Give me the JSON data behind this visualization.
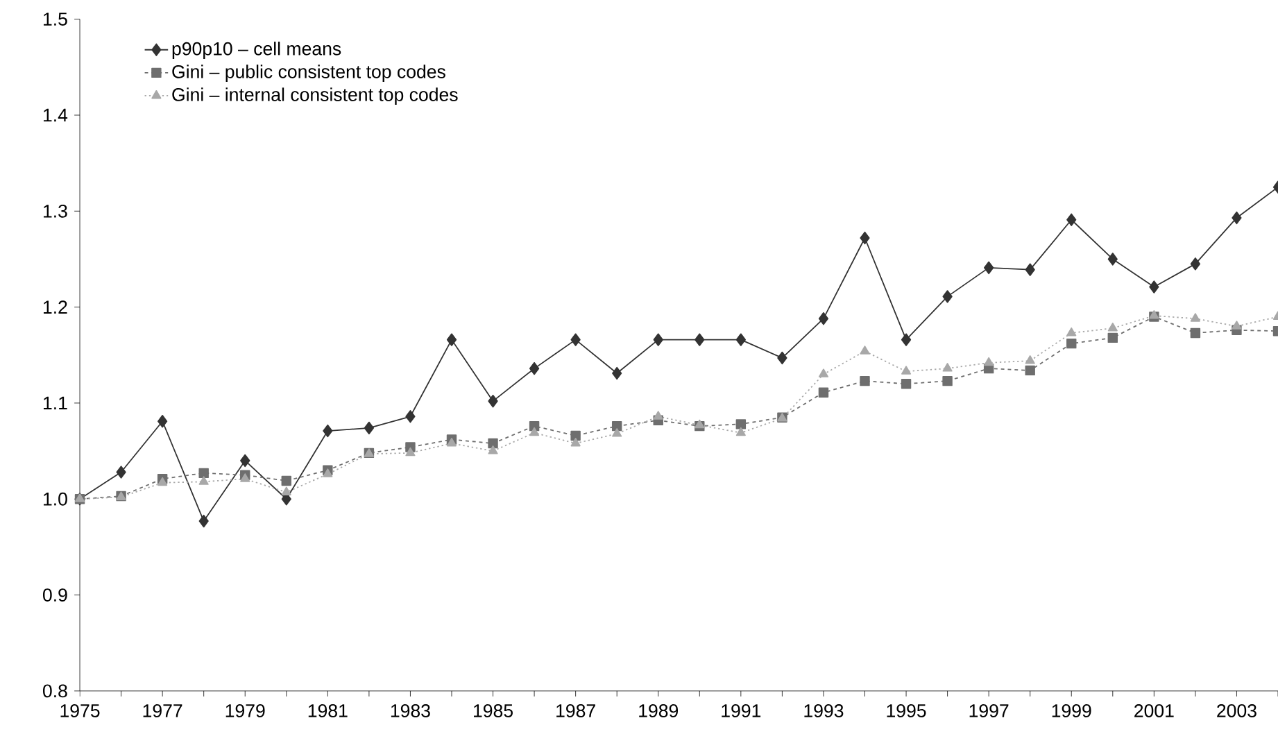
{
  "chart_data": {
    "type": "line",
    "x": [
      1975,
      1976,
      1977,
      1978,
      1979,
      1980,
      1981,
      1982,
      1983,
      1984,
      1985,
      1986,
      1987,
      1988,
      1989,
      1990,
      1991,
      1992,
      1993,
      1994,
      1995,
      1996,
      1997,
      1998,
      1999,
      2000,
      2001,
      2002,
      2003,
      2004
    ],
    "series": [
      {
        "name": "p90p10 – cell means",
        "color": "#333333",
        "marker": "diamond",
        "line_style": "solid",
        "values": [
          1.0,
          1.028,
          1.081,
          0.977,
          1.04,
          1.0,
          1.071,
          1.074,
          1.086,
          1.166,
          1.102,
          1.136,
          1.166,
          1.131,
          1.166,
          1.166,
          1.166,
          1.147,
          1.188,
          1.272,
          1.166,
          1.211,
          1.241,
          1.239,
          1.291,
          1.25,
          1.221,
          1.245,
          1.293,
          1.325
        ]
      },
      {
        "name": "Gini – public consistent top codes",
        "color": "#6e6e6e",
        "marker": "square",
        "line_style": "dashed",
        "values": [
          1.0,
          1.003,
          1.021,
          1.027,
          1.025,
          1.019,
          1.03,
          1.048,
          1.054,
          1.062,
          1.058,
          1.076,
          1.066,
          1.076,
          1.082,
          1.076,
          1.078,
          1.085,
          1.111,
          1.123,
          1.12,
          1.123,
          1.136,
          1.134,
          1.162,
          1.168,
          1.19,
          1.173,
          1.176,
          1.175
        ]
      },
      {
        "name": "Gini – internal consistent top codes",
        "color": "#a8a8a8",
        "marker": "triangle",
        "line_style": "dotted",
        "values": [
          1.0,
          1.002,
          1.017,
          1.018,
          1.021,
          1.007,
          1.026,
          1.047,
          1.048,
          1.058,
          1.05,
          1.069,
          1.058,
          1.068,
          1.086,
          1.077,
          1.069,
          1.084,
          1.13,
          1.154,
          1.133,
          1.136,
          1.142,
          1.144,
          1.173,
          1.178,
          1.191,
          1.188,
          1.18,
          1.19
        ]
      }
    ],
    "xlim": [
      1975,
      2004
    ],
    "xticks": [
      1975,
      {
        "value": 1976,
        "label": null
      },
      1977,
      {
        "value": 1978,
        "label": null
      },
      1979,
      {
        "value": 1980,
        "label": null
      },
      1981,
      {
        "value": 1982,
        "label": null
      },
      1983,
      {
        "value": 1984,
        "label": null
      },
      1985,
      {
        "value": 1986,
        "label": null
      },
      1987,
      {
        "value": 1988,
        "label": null
      },
      1989,
      {
        "value": 1990,
        "label": null
      },
      1991,
      {
        "value": 1992,
        "label": null
      },
      1993,
      {
        "value": 1994,
        "label": null
      },
      1995,
      {
        "value": 1996,
        "label": null
      },
      1997,
      {
        "value": 1998,
        "label": null
      },
      1999,
      {
        "value": 2000,
        "label": null
      },
      2001,
      {
        "value": 2002,
        "label": null
      },
      2003,
      {
        "value": 2004,
        "label": null
      }
    ],
    "ylim": [
      0.8,
      1.5
    ],
    "yticks": [
      {
        "value": 0.8,
        "label": "0.8"
      },
      {
        "value": 0.9,
        "label": "0.9"
      },
      {
        "value": 1.0,
        "label": "1.0"
      },
      {
        "value": 1.1,
        "label": "1.1"
      },
      {
        "value": 1.2,
        "label": "1.2"
      },
      {
        "value": 1.3,
        "label": "1.3"
      },
      {
        "value": 1.4,
        "label": "1.4"
      },
      {
        "value": 1.5,
        "label": "1.5"
      }
    ],
    "grid": false,
    "legend": "top left"
  }
}
